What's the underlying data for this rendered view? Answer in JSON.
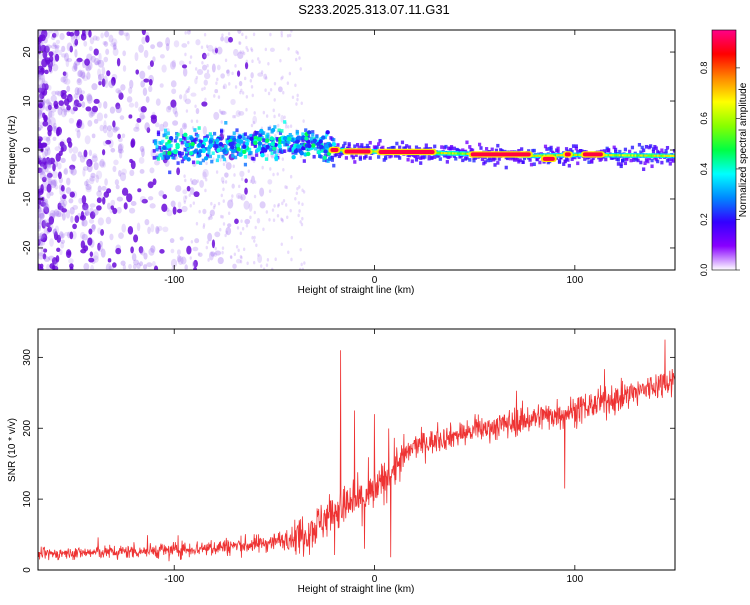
{
  "title": "S233.2025.313.07.11.G31",
  "colors": {
    "snr_line": "#ee3333",
    "axis": "#000000",
    "colormap": [
      "#ffffff",
      "#8800ff",
      "#3300ff",
      "#0088ff",
      "#00ffff",
      "#00ff44",
      "#88ff00",
      "#ffff00",
      "#ff8800",
      "#ff0000",
      "#ff0088"
    ]
  },
  "chart_data": [
    {
      "type": "heatmap",
      "title": "S233.2025.313.07.11.G31",
      "xlabel": "Height of straight line (km)",
      "ylabel": "Frequency (Hz)",
      "xlim": [
        -168,
        150
      ],
      "ylim": [
        -24.5,
        24.5
      ],
      "xticks": [
        -100,
        0,
        100
      ],
      "yticks": [
        -20,
        -10,
        0,
        10,
        20
      ],
      "colorbar": {
        "label": "Normalized spectral amplitude",
        "range": [
          0,
          0.95
        ],
        "ticks": [
          0.0,
          0.2,
          0.4,
          0.6,
          0.8
        ]
      },
      "ridge": [
        {
          "x": -100,
          "y": 0.5
        },
        {
          "x": -75,
          "y": 1.0
        },
        {
          "x": -50,
          "y": 1.5
        },
        {
          "x": -30,
          "y": 1.0
        },
        {
          "x": -20,
          "y": 0.0
        },
        {
          "x": 0,
          "y": -0.3
        },
        {
          "x": 50,
          "y": -0.8
        },
        {
          "x": 80,
          "y": -1.2
        },
        {
          "x": 100,
          "y": -1.0
        },
        {
          "x": 150,
          "y": -1.2
        }
      ],
      "strong_segments": [
        {
          "x0": -22,
          "x1": -18,
          "y": 0.0
        },
        {
          "x0": -15,
          "x1": -2,
          "y": -0.3
        },
        {
          "x0": 2,
          "x1": 30,
          "y": -0.4
        },
        {
          "x0": 48,
          "x1": 78,
          "y": -0.9
        },
        {
          "x0": 84,
          "x1": 90,
          "y": -1.8
        },
        {
          "x0": 95,
          "x1": 98,
          "y": -0.9
        },
        {
          "x0": 104,
          "x1": 114,
          "y": -0.9
        }
      ]
    },
    {
      "type": "line",
      "xlabel": "Height of straight line (km)",
      "ylabel": "SNR (10 * v/v)",
      "xlim": [
        -168,
        150
      ],
      "ylim": [
        0,
        340
      ],
      "xticks": [
        -100,
        0,
        100
      ],
      "yticks": [
        0,
        100,
        200,
        300
      ],
      "trend": [
        {
          "x": -168,
          "y": 22
        },
        {
          "x": -150,
          "y": 24
        },
        {
          "x": -100,
          "y": 28
        },
        {
          "x": -80,
          "y": 32
        },
        {
          "x": -60,
          "y": 36
        },
        {
          "x": -40,
          "y": 45
        },
        {
          "x": -30,
          "y": 60
        },
        {
          "x": -22,
          "y": 80
        },
        {
          "x": -10,
          "y": 95
        },
        {
          "x": 0,
          "y": 110
        },
        {
          "x": 10,
          "y": 145
        },
        {
          "x": 20,
          "y": 175
        },
        {
          "x": 40,
          "y": 190
        },
        {
          "x": 80,
          "y": 215
        },
        {
          "x": 100,
          "y": 225
        },
        {
          "x": 130,
          "y": 250
        },
        {
          "x": 150,
          "y": 270
        }
      ],
      "spikes": [
        {
          "x": -17,
          "y": 310
        },
        {
          "x": -10,
          "y": 225
        },
        {
          "x": 0,
          "y": 220
        },
        {
          "x": 8,
          "y": 18
        },
        {
          "x": -5,
          "y": 30
        },
        {
          "x": 95,
          "y": 115
        },
        {
          "x": 145,
          "y": 325
        }
      ]
    }
  ]
}
